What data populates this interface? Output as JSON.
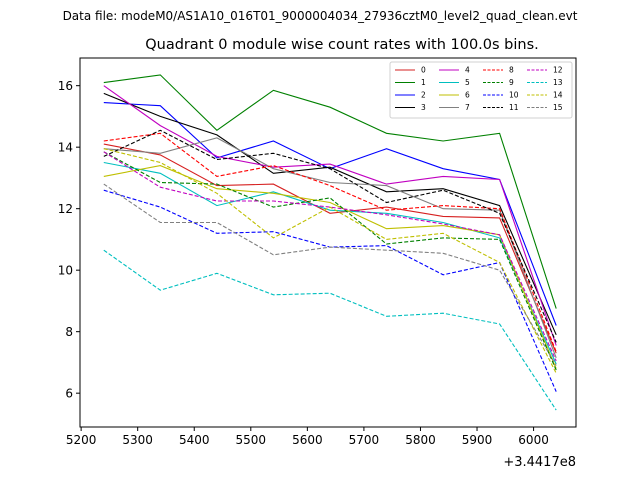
{
  "header": {
    "file_label": "Data file: modeM0/AS1A10_016T01_9000004034_27936cztM0_level2_quad_clean.evt"
  },
  "chart_data": {
    "type": "line",
    "title": "Quadrant 0 module wise count rates with 100.0s bins.",
    "xlabel": "",
    "ylabel": "",
    "x_offset_label": "+3.4417e8",
    "xlim": [
      5198,
      6075
    ],
    "ylim": [
      4.9,
      16.9
    ],
    "xticks": [
      5200,
      5300,
      5400,
      5500,
      5600,
      5700,
      5800,
      5900,
      6000
    ],
    "yticks": [
      6,
      8,
      10,
      12,
      14,
      16
    ],
    "x": [
      5240,
      5340,
      5440,
      5540,
      5640,
      5740,
      5840,
      5940,
      6040
    ],
    "legend_position": "top-right",
    "series": [
      {
        "name": "0",
        "color": "#d62020",
        "dash": "solid",
        "values": [
          14.1,
          13.75,
          12.75,
          12.8,
          11.85,
          12.05,
          11.75,
          11.7,
          7.3
        ]
      },
      {
        "name": "1",
        "color": "#008000",
        "dash": "solid",
        "values": [
          16.1,
          16.35,
          14.55,
          15.85,
          15.3,
          14.45,
          14.2,
          14.45,
          8.75
        ]
      },
      {
        "name": "2",
        "color": "#0000ff",
        "dash": "solid",
        "values": [
          15.45,
          15.35,
          13.65,
          14.2,
          13.3,
          13.95,
          13.3,
          12.95,
          8.2
        ]
      },
      {
        "name": "3",
        "color": "#000000",
        "dash": "solid",
        "values": [
          15.75,
          15.0,
          14.4,
          13.15,
          13.35,
          12.55,
          12.65,
          12.1,
          7.9
        ]
      },
      {
        "name": "4",
        "color": "#c000c0",
        "dash": "solid",
        "values": [
          16.0,
          14.7,
          13.7,
          13.35,
          13.45,
          12.8,
          13.05,
          12.95,
          7.55
        ]
      },
      {
        "name": "5",
        "color": "#00bfbf",
        "dash": "solid",
        "values": [
          13.5,
          13.15,
          12.1,
          12.55,
          11.95,
          11.85,
          11.55,
          11.05,
          6.95
        ]
      },
      {
        "name": "6",
        "color": "#bfbf00",
        "dash": "solid",
        "values": [
          13.05,
          13.4,
          12.65,
          12.5,
          12.2,
          11.35,
          11.45,
          11.15,
          6.8
        ]
      },
      {
        "name": "7",
        "color": "#808080",
        "dash": "solid",
        "values": [
          13.95,
          13.8,
          14.3,
          13.3,
          12.85,
          12.75,
          12.0,
          11.95,
          7.15
        ]
      },
      {
        "name": "8",
        "color": "#ff0000",
        "dash": "dashed",
        "values": [
          14.2,
          14.45,
          13.05,
          13.4,
          12.75,
          11.95,
          12.1,
          12.0,
          7.35
        ]
      },
      {
        "name": "9",
        "color": "#008000",
        "dash": "dashed",
        "values": [
          13.85,
          12.85,
          12.8,
          12.05,
          12.35,
          10.85,
          11.05,
          11.0,
          6.75
        ]
      },
      {
        "name": "10",
        "color": "#0000ff",
        "dash": "dashed",
        "values": [
          12.6,
          12.05,
          11.2,
          11.25,
          10.75,
          10.8,
          9.85,
          10.25,
          6.05
        ]
      },
      {
        "name": "11",
        "color": "#000000",
        "dash": "dashed",
        "values": [
          13.7,
          14.55,
          13.6,
          13.8,
          13.3,
          12.2,
          12.6,
          11.85,
          7.65
        ]
      },
      {
        "name": "12",
        "color": "#c000c0",
        "dash": "dashed",
        "values": [
          13.85,
          12.7,
          12.25,
          12.25,
          12.05,
          11.8,
          11.5,
          11.15,
          7.05
        ]
      },
      {
        "name": "13",
        "color": "#00bfbf",
        "dash": "dashed",
        "values": [
          10.65,
          9.35,
          9.9,
          9.2,
          9.25,
          8.5,
          8.6,
          8.25,
          5.45
        ]
      },
      {
        "name": "14",
        "color": "#bfbf00",
        "dash": "dashed",
        "values": [
          13.95,
          13.5,
          12.5,
          11.05,
          12.05,
          11.0,
          11.2,
          10.25,
          6.65
        ]
      },
      {
        "name": "15",
        "color": "#808080",
        "dash": "dashed",
        "values": [
          12.8,
          11.55,
          11.55,
          10.5,
          10.75,
          10.65,
          10.55,
          10.0,
          6.9
        ]
      }
    ]
  }
}
